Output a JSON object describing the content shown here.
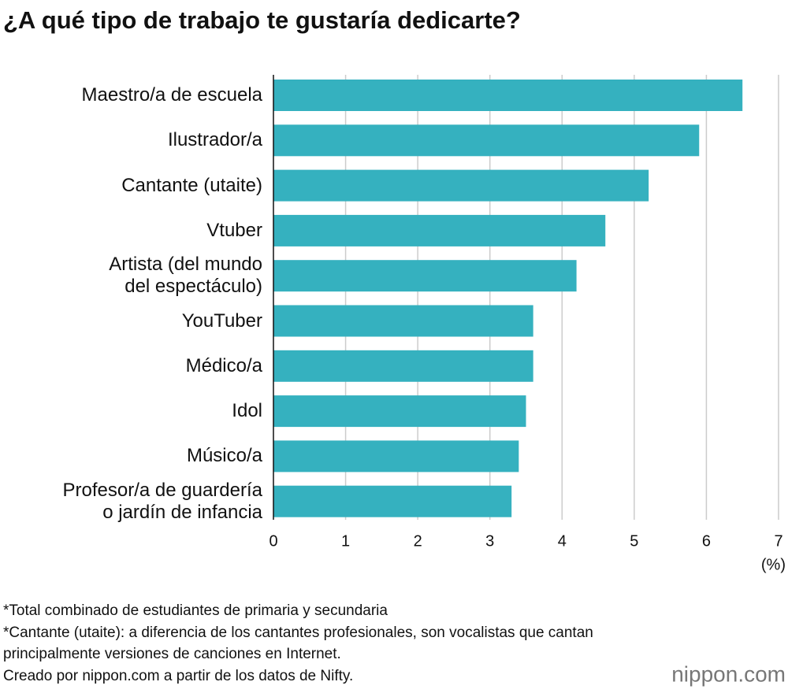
{
  "chart_data": {
    "type": "bar",
    "orientation": "horizontal",
    "title": "¿A qué tipo de trabajo te gustaría dedicarte?",
    "categories": [
      "Maestro/a de escuela",
      "Ilustrador/a",
      "Cantante (utaite)",
      "Vtuber",
      "Artista (del mundo\ndel espectáculo)",
      "YouTuber",
      "Médico/a",
      "Idol",
      "Músico/a",
      "Profesor/a de guardería\no jardín de infancia"
    ],
    "values": [
      6.5,
      5.9,
      5.2,
      4.6,
      4.2,
      3.6,
      3.6,
      3.5,
      3.4,
      3.3
    ],
    "color": "#35b1bf",
    "xlim": [
      0,
      7
    ],
    "xticks": [
      0,
      1,
      2,
      3,
      4,
      5,
      6,
      7
    ],
    "grid": true,
    "x_label": "(%)",
    "notes": [
      "*Total combinado de estudiantes de primaria y secundaria",
      "*Cantante (utaite): a diferencia de los cantantes profesionales, son vocalistas que cantan",
      "principalmente versiones de canciones en Internet.",
      "Creado por nippon.com a partir de los datos de Nifty."
    ],
    "logo": "nippon.com"
  }
}
